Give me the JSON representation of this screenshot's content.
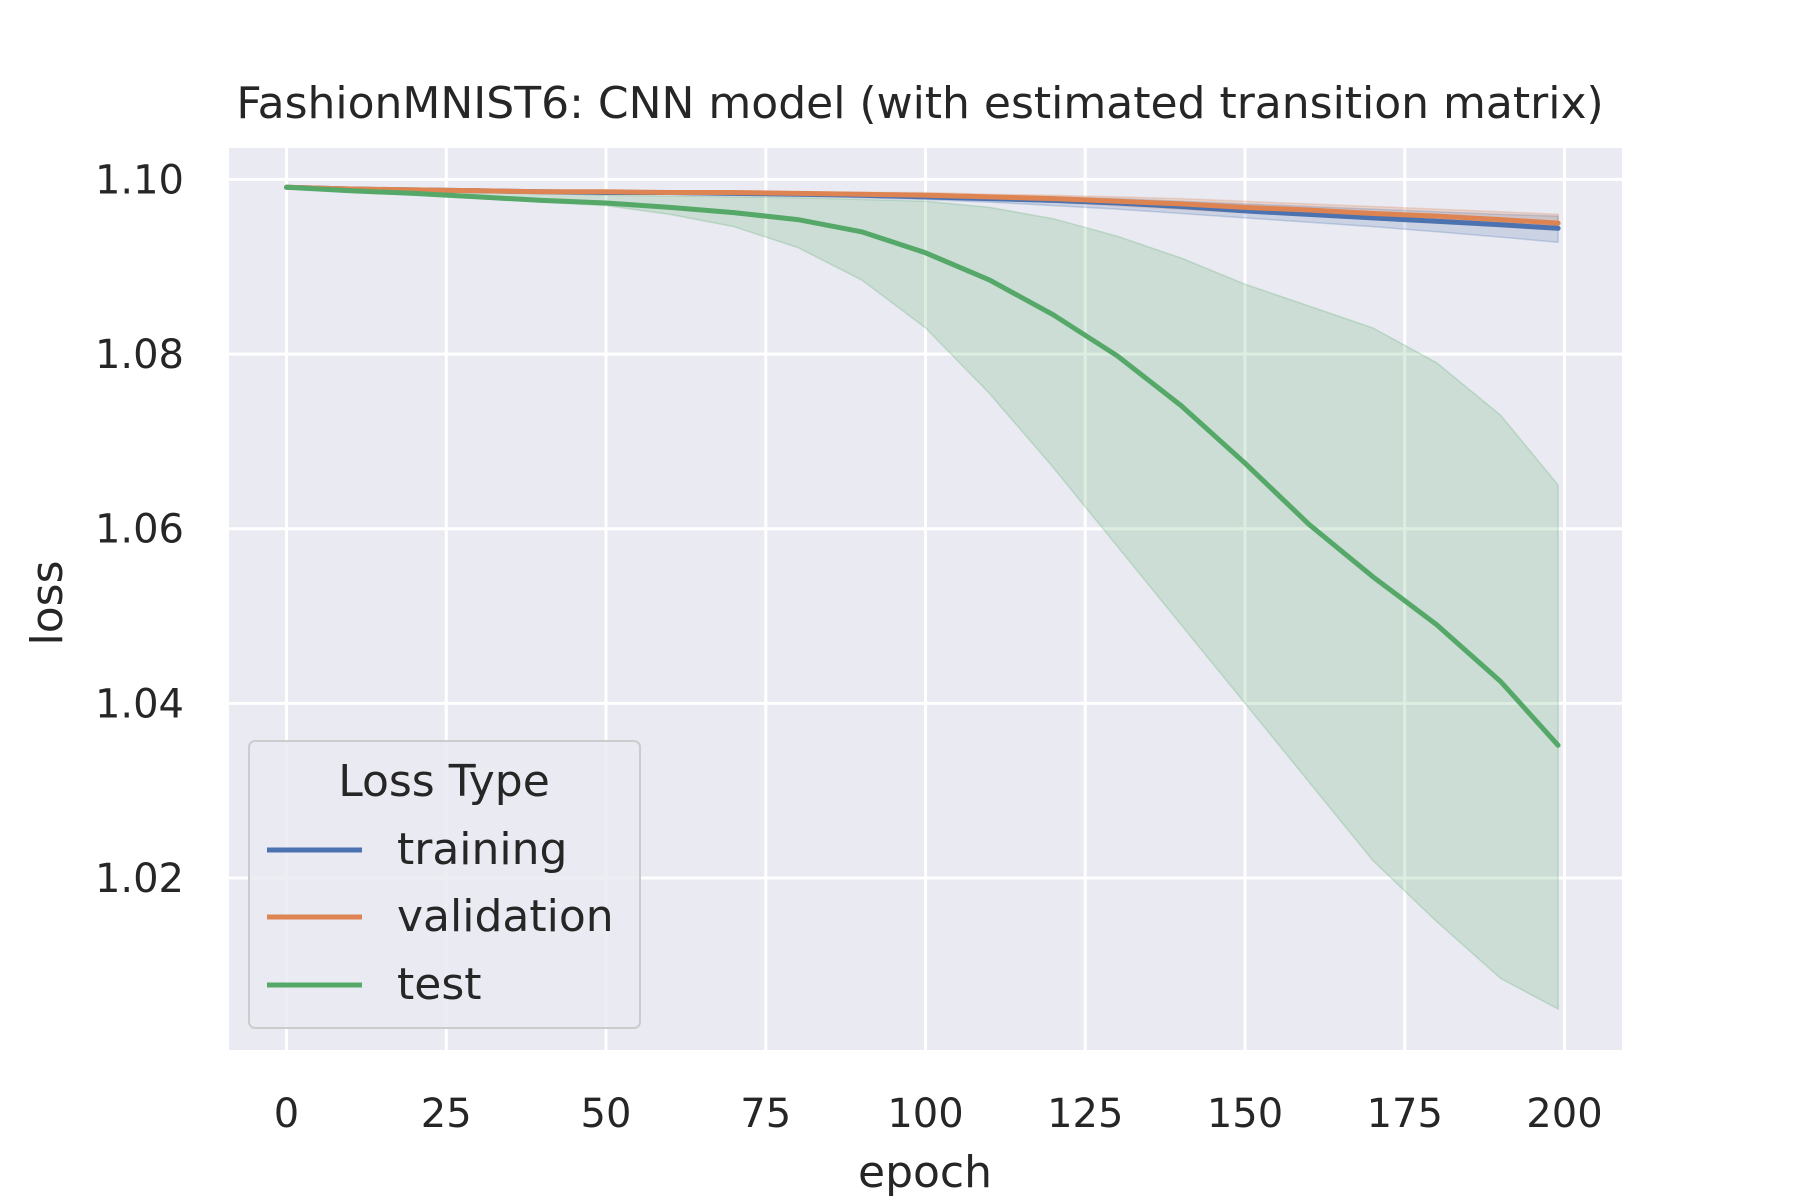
{
  "chart_data": {
    "type": "line",
    "title": "FashionMNIST6: CNN model (with estimated transition matrix)",
    "xlabel": "epoch",
    "ylabel": "loss",
    "xlim": [
      -9,
      209
    ],
    "ylim": [
      1.0003,
      1.1036
    ],
    "xticks": [
      0,
      25,
      50,
      75,
      100,
      125,
      150,
      175,
      200
    ],
    "yticks": [
      1.02,
      1.04,
      1.06,
      1.08,
      1.1
    ],
    "ytick_labels": [
      "1.02",
      "1.04",
      "1.06",
      "1.08",
      "1.10"
    ],
    "grid": true,
    "legend": {
      "title": "Loss Type",
      "position": "lower-left"
    },
    "x": [
      0,
      10,
      20,
      30,
      40,
      50,
      60,
      70,
      80,
      90,
      100,
      110,
      120,
      130,
      140,
      150,
      160,
      170,
      180,
      190,
      199
    ],
    "series": [
      {
        "name": "training",
        "color": "#4c72b0",
        "values": [
          1.0991,
          1.0989,
          1.0988,
          1.0987,
          1.0986,
          1.0985,
          1.0985,
          1.0984,
          1.0983,
          1.0982,
          1.098,
          1.0978,
          1.0976,
          1.0973,
          1.0969,
          1.0964,
          1.096,
          1.0956,
          1.0952,
          1.0948,
          1.0944
        ],
        "lower": [
          1.099,
          1.0988,
          1.0987,
          1.0986,
          1.0985,
          1.0984,
          1.0983,
          1.0982,
          1.0981,
          1.0979,
          1.0977,
          1.0974,
          1.097,
          1.0966,
          1.0961,
          1.0956,
          1.0951,
          1.0946,
          1.094,
          1.0934,
          1.0928
        ],
        "upper": [
          1.0992,
          1.099,
          1.0989,
          1.0988,
          1.0987,
          1.0986,
          1.0986,
          1.0985,
          1.0985,
          1.0984,
          1.0983,
          1.0981,
          1.098,
          1.0978,
          1.0975,
          1.0972,
          1.0969,
          1.0966,
          1.0963,
          1.096,
          1.0958
        ]
      },
      {
        "name": "validation",
        "color": "#dd8452",
        "values": [
          1.0991,
          1.0989,
          1.0988,
          1.0987,
          1.0986,
          1.0986,
          1.0985,
          1.0985,
          1.0984,
          1.0983,
          1.0982,
          1.098,
          1.0978,
          1.0975,
          1.0972,
          1.0968,
          1.0965,
          1.0961,
          1.0958,
          1.0954,
          1.095
        ],
        "lower": [
          1.099,
          1.0988,
          1.0987,
          1.0986,
          1.0985,
          1.0985,
          1.0984,
          1.0983,
          1.0982,
          1.0981,
          1.0979,
          1.0977,
          1.0974,
          1.097,
          1.0966,
          1.0962,
          1.0958,
          1.0954,
          1.095,
          1.0946,
          1.0942
        ],
        "upper": [
          1.0992,
          1.099,
          1.0989,
          1.0988,
          1.0987,
          1.0987,
          1.0986,
          1.0986,
          1.0986,
          1.0985,
          1.0985,
          1.0983,
          1.0982,
          1.098,
          1.0978,
          1.0975,
          1.0972,
          1.0969,
          1.0966,
          1.0963,
          1.096
        ]
      },
      {
        "name": "test",
        "color": "#55a868",
        "values": [
          1.0991,
          1.0987,
          1.0984,
          1.098,
          1.0976,
          1.0973,
          1.0968,
          1.0962,
          1.0954,
          1.094,
          1.0916,
          1.0885,
          1.0845,
          1.0798,
          1.0741,
          1.0675,
          1.0605,
          1.0545,
          1.049,
          1.0425,
          1.0352
        ],
        "lower": [
          1.099,
          1.0986,
          1.0982,
          1.0978,
          1.0974,
          1.097,
          1.096,
          1.0946,
          1.0922,
          1.0885,
          1.083,
          1.0755,
          1.067,
          1.058,
          1.049,
          1.04,
          1.031,
          1.022,
          1.015,
          1.0085,
          1.005
        ],
        "upper": [
          1.0992,
          1.099,
          1.0988,
          1.0986,
          1.0984,
          1.0982,
          1.0981,
          1.098,
          1.0979,
          1.0977,
          1.0975,
          1.0968,
          1.0955,
          1.0935,
          1.091,
          1.088,
          1.0855,
          1.083,
          1.079,
          1.073,
          1.065
        ]
      }
    ]
  }
}
